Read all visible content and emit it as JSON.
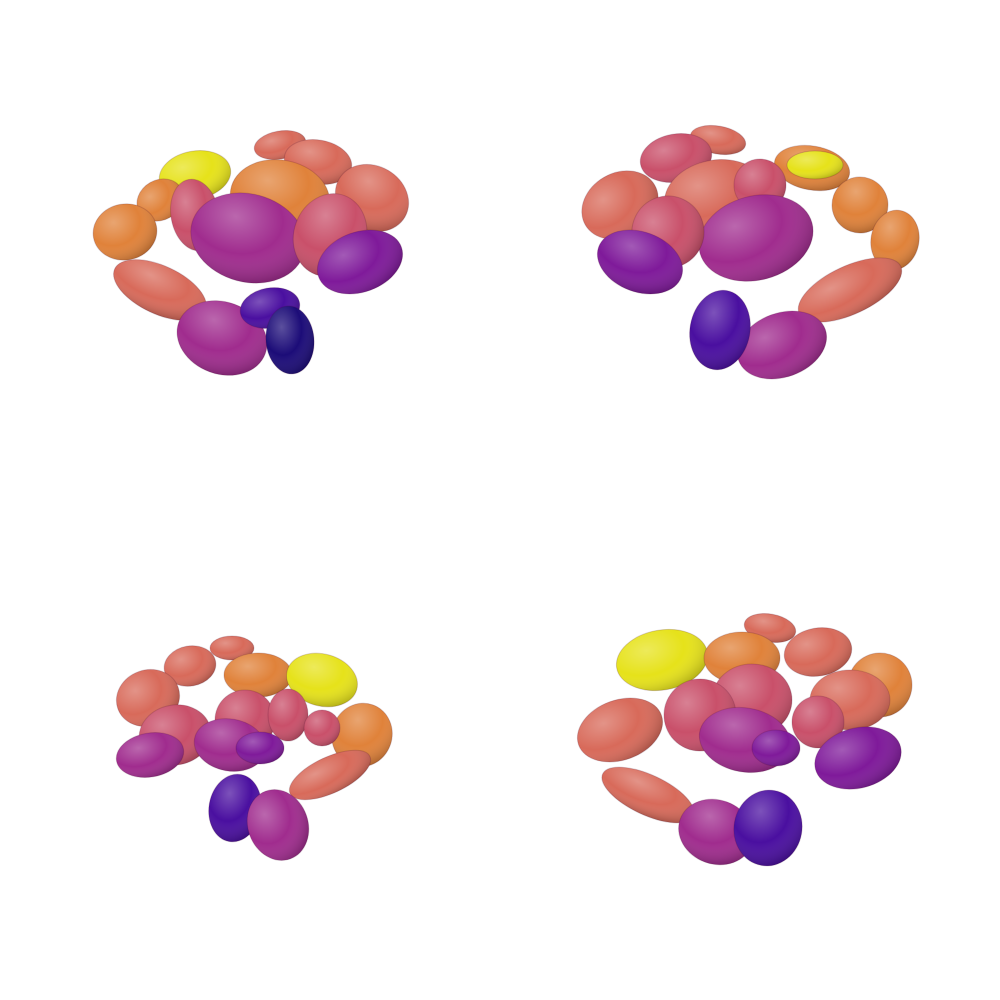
{
  "views": [
    {
      "id": "view-tl",
      "name": "top-left-view"
    },
    {
      "id": "view-tr",
      "name": "top-right-view"
    },
    {
      "id": "view-bl",
      "name": "bottom-left-view"
    },
    {
      "id": "view-br",
      "name": "bottom-right-view"
    }
  ],
  "colors": {
    "yellow": "#e6e21a",
    "orange": "#e0823a",
    "salmon": "#d86a5a",
    "rose": "#c9506a",
    "magenta": "#a02c8e",
    "purple": "#7f1a9a",
    "indigo": "#4a0fa0",
    "navy": "#1c0c78"
  }
}
